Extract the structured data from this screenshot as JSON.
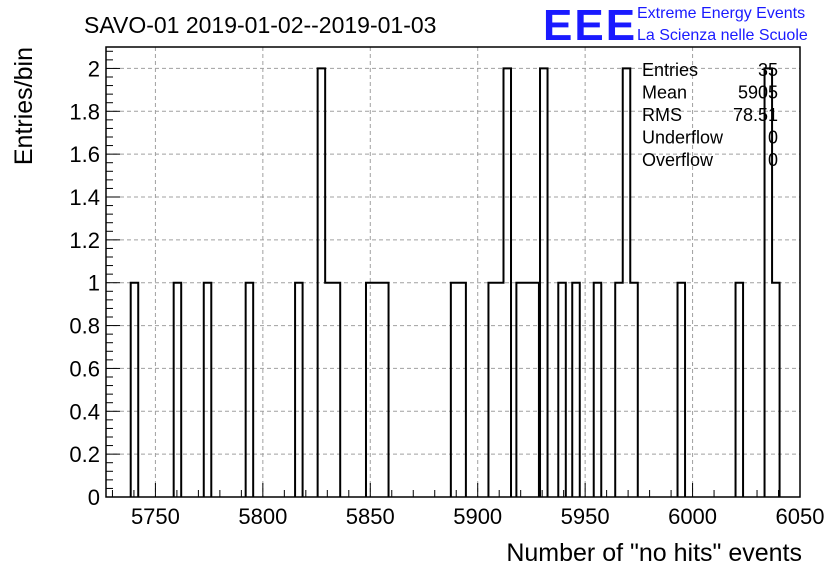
{
  "chart_data": {
    "type": "bar",
    "title": "SAVO-01 2019-01-02--2019-01-03",
    "xlabel": "Number of \"no hits\" events",
    "ylabel": "Entries/bin",
    "xlim": [
      5727,
      6050
    ],
    "ylim": [
      0,
      2.1
    ],
    "bin_width": 3.5,
    "grid": true,
    "x_ticks": [
      5750,
      5800,
      5850,
      5900,
      5950,
      6000,
      6050
    ],
    "y_ticks": [
      "0",
      "0.2",
      "0.4",
      "0.6",
      "0.8",
      "1",
      "1.2",
      "1.4",
      "1.6",
      "1.8",
      "2"
    ],
    "bins": [
      {
        "x": 5738.5,
        "count": 1
      },
      {
        "x": 5758.5,
        "count": 1
      },
      {
        "x": 5772.5,
        "count": 1
      },
      {
        "x": 5792.0,
        "count": 1
      },
      {
        "x": 5815.0,
        "count": 1
      },
      {
        "x": 5825.5,
        "count": 2
      },
      {
        "x": 5829.0,
        "count": 1
      },
      {
        "x": 5832.5,
        "count": 1
      },
      {
        "x": 5848.0,
        "count": 1
      },
      {
        "x": 5851.5,
        "count": 1
      },
      {
        "x": 5855.0,
        "count": 1
      },
      {
        "x": 5887.5,
        "count": 1
      },
      {
        "x": 5891.0,
        "count": 1
      },
      {
        "x": 5905.0,
        "count": 1
      },
      {
        "x": 5908.5,
        "count": 1
      },
      {
        "x": 5912.0,
        "count": 2
      },
      {
        "x": 5918.0,
        "count": 1
      },
      {
        "x": 5921.5,
        "count": 1
      },
      {
        "x": 5925.0,
        "count": 1
      },
      {
        "x": 5929.0,
        "count": 2
      },
      {
        "x": 5937.5,
        "count": 1
      },
      {
        "x": 5944.0,
        "count": 1
      },
      {
        "x": 5954.0,
        "count": 1
      },
      {
        "x": 5964.0,
        "count": 1
      },
      {
        "x": 5967.5,
        "count": 2
      },
      {
        "x": 5971.0,
        "count": 1
      },
      {
        "x": 5993.0,
        "count": 1
      },
      {
        "x": 6020.0,
        "count": 1
      },
      {
        "x": 6033.5,
        "count": 2
      },
      {
        "x": 6037.0,
        "count": 1
      }
    ],
    "stats": [
      {
        "key": "Entries",
        "value": "35"
      },
      {
        "key": "Mean",
        "value": "5905"
      },
      {
        "key": "RMS",
        "value": "78.51"
      },
      {
        "key": "Underflow",
        "value": "0"
      },
      {
        "key": "Overflow",
        "value": "0"
      }
    ]
  },
  "logo": {
    "mark": "EEE",
    "line1": "Extreme Energy Events",
    "line2": "La Scienza nelle Scuole",
    "color": "#1a1aff"
  }
}
